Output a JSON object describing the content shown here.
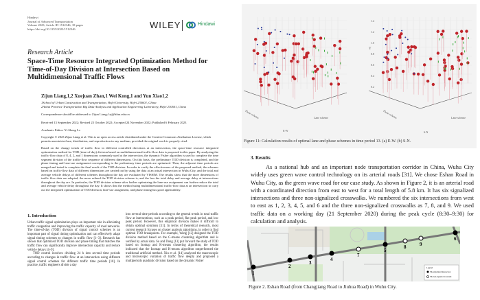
{
  "left_page": {
    "meta": [
      "Hindawi",
      "Journal of Advanced Transportation",
      "Volume 2023, Article ID 1512346, 18 pages",
      "https://doi.org/10.1155/2023/1512346"
    ],
    "publisher": "WILEY",
    "hindawi": "Hindawi",
    "brand_color": "#1b8f4a",
    "article_type": "Research Article",
    "title": "Space-Time Resource Integrated Optimization Method for Time-of-Day Division at Intersection Based on Multidimensional Traffic Flows",
    "authors": "Zijun Liang,1,2 Xuejuan Zhan,1 Wei Kong,1 and Yun Xiao1,2",
    "affiliations": [
      "1School of Urban Construction and Transportation, Hefei University, Hefei 230601, China",
      "2Anhui Province Transportation Big Data Analysis and Application Engineering Laboratory, Hefei 230601, China"
    ],
    "correspondence": "Correspondence should be addressed to Zijun Liang; lzj@hfuu.edu.cn",
    "dates": "Received 13 September 2022; Revised 23 October 2022; Accepted 24 November 2022; Published 6 February 2023",
    "editor": "Academic Editor: Yi-Sheng Lv",
    "copyright": "Copyright © 2023 Zijun Liang et al. This is an open access article distributed under the Creative Commons Attribution License, which permits unrestricted use, distribution, and reproduction in any medium, provided the original work is properly cited.",
    "abstract": "Based on the change trends of traffic flow in different controlled directions at an intersection, the space-time resource integrated optimization method for TOD (time-of-day) division based on multidimensional traffic-flow data is proposed in this paper. By analyzing the traffic-flow data of 8, 4, 2, and 1 dimensions commonly used at the intersection, the dynamic Fisher algorithm is used to complete the time segment division of the traffic-flow sequence of different dimensions. On this basis, the preliminary TOD division is completed, and the phase timing and lane-use assignment corresponding to the preliminary time periods are optimized. Then, the adjacent time periods are merged and tested to complete the final result of the TOD division. In order to verify the effectiveness of the proposed method, the schemes based on traffic-flow data of different dimensions are carried out by using the data at an actual intersection in Wuhu City, and the total and average vehicle delays of different schemes throughout the day are evaluated by VISSIM. The results show that the more dimensions of traffic flow data are adopted, the more refined the TOD division scheme is, and the less the total delay and average delay at intersections throughout the day are. In particular, the TOD division scheme after further optimizing the lane-use assignment can further reduce the total and average vehicle delay throughout the day. It shows that the method using multidimensional traffic-flow data at an intersection to carry out the integrated optimization of TOD division, lane-use assignment, and phase timing has good applicability.",
    "section": "1. Introduction",
    "intro_left": "Urban traffic signal optimization plays an important role in alleviating traffic congestion and improving the traffic capacity of road networks. The time-of-day (TOD) division of signal control schemes is an important part of signal timing optimization and can effectively adapt signal timing schemes to changes in traffic flow [1–3]. Research has shown that optimized TOD division and phase timing that matches the traffic flow can significantly improve intersection capacity and reduce vehicle delays [4–9].",
    "intro_left2": "TOD control involves dividing 24 h into several time periods according to changes in traffic flow at an intersection using different signal control schemes for different traffic time periods [10]. In practice, traffic engineers divide a day",
    "intro_right": "into several time periods according to the general trends in total traffic flow at intersections, such as a peak period, flat peak period, and low peak period. However, this empirical division makes it difficult to obtain optimal solutions [11]. In terms of theoretical research, most current research focuses on cluster analysis algorithms, in order to find optimal TOD breakpoints. For example, Wang [12] designed the TOD division method based on the C-means clustering algorithm and is verified by actual data. Su and Dong [13] put forward the study of TOD based on Isomap and K-means clustering algorithm, the results indicated that the Isomap and K-means algorithm outperformed the traditional artificial method. Xiu et al. [14] analyzed the macroscopic and microscopic variation of traffic flow deeply and proposed a multiperiods quadratic division based on the dynamic Fisher"
  },
  "figure11": {
    "panel_a": {
      "label": "E-W",
      "x_axis": "Lane scheme",
      "y_axis": "Phase scheme"
    },
    "panel_b": {
      "label": "S-N",
      "x_axis": "Lane scheme",
      "y_axis": "Phase scheme",
      "z_axis": "Y",
      "z_ticks": [
        "1.4",
        "1.2",
        "1.0",
        "0.8",
        "0.6",
        "0.4",
        "0.2"
      ],
      "phase_ticks": [
        "7",
        "8",
        "9",
        "10",
        "11",
        "12"
      ]
    },
    "caption": "Figure 11: Calculation results of optimal lane and phase schemes in time period 13. (a) E-W. (b) S-N.",
    "colors": {
      "point": "#c0242a",
      "blue": "#2a3a9a",
      "green": "#3aa83a"
    }
  },
  "results": {
    "heading": "3. Results",
    "paragraph": "As a national hub and an important node transportation corridor in China, Wuhu City widely uses green wave control technology on its arterial roads [31]. We chose Eshan Road in Wuhu City, as the green wave road for our case study. As shown in Figure 2, it is an arterial road with a coordinated direction from east to west for a total length of 5.8 km. It has six signalized intersections and three non-signalized crosswalks. We numbered the six intersections from west to east as 1, 2, 3, 4, 5, and 6 and the three non-signalized crosswalks as 7, 8, and 9. We used traffic data on a working day (21 September 2020) during the peak cycle (8:30–9:30) for calculation and analysis.",
    "map_nodes": [
      "1",
      "2",
      "3",
      "4",
      "5",
      "6",
      "7",
      "8",
      "9"
    ],
    "legend_title": "Legend",
    "legend_items": [
      "The signalized intersection",
      "The non-signaled crosswalk"
    ],
    "caption": "Figure 2. Eshan Road (from Changjiang Road to Jiuhua Road) in Wuhu City."
  }
}
